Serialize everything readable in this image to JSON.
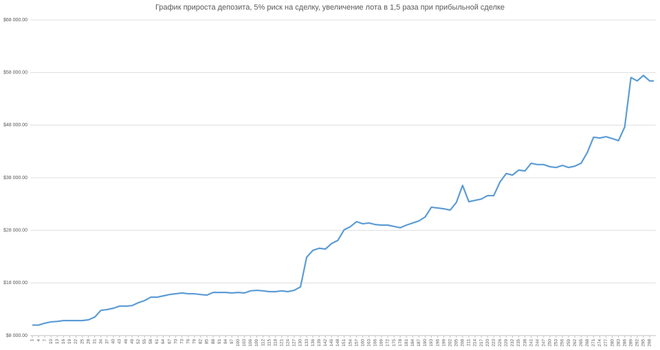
{
  "chart_data": {
    "type": "line",
    "title": "График прироста депозита, 5% риск на сделку, увеличение лота  в 1,5 раза при прибыльной сделке",
    "xlim": [
      1,
      300
    ],
    "xticks": [
      1,
      4,
      7,
      10,
      13,
      16,
      19,
      22,
      25,
      28,
      31,
      34,
      37,
      40,
      43,
      46,
      49,
      52,
      55,
      58,
      61,
      64,
      67,
      70,
      73,
      76,
      79,
      82,
      85,
      88,
      91,
      94,
      97,
      100,
      103,
      106,
      109,
      112,
      115,
      118,
      121,
      124,
      127,
      130,
      133,
      136,
      139,
      142,
      145,
      148,
      151,
      154,
      157,
      160,
      163,
      166,
      169,
      172,
      175,
      178,
      181,
      184,
      187,
      190,
      193,
      196,
      199,
      202,
      205,
      208,
      211,
      214,
      217,
      220,
      223,
      226,
      229,
      232,
      235,
      238,
      241,
      244,
      247,
      250,
      253,
      256,
      259,
      262,
      265,
      268,
      271,
      274,
      277,
      280,
      283,
      286,
      289,
      292,
      295,
      298
    ],
    "ylim": [
      8000,
      68000
    ],
    "yticks": [
      {
        "value": 8000,
        "label": "$8 000.00"
      },
      {
        "value": 18000,
        "label": "$18 000.00"
      },
      {
        "value": 28000,
        "label": "$28 000.00"
      },
      {
        "value": 38000,
        "label": "$38 000.00"
      },
      {
        "value": 48000,
        "label": "$48 000.00"
      },
      {
        "value": 58000,
        "label": "$58 000.00"
      },
      {
        "value": 68000,
        "label": "$68 000.00"
      }
    ],
    "grid": true,
    "x": [
      1,
      4,
      7,
      10,
      13,
      16,
      19,
      22,
      25,
      28,
      31,
      34,
      37,
      40,
      43,
      46,
      49,
      52,
      55,
      58,
      61,
      64,
      67,
      70,
      73,
      76,
      79,
      82,
      85,
      88,
      91,
      94,
      97,
      100,
      103,
      106,
      109,
      112,
      115,
      118,
      121,
      124,
      127,
      130,
      133,
      136,
      139,
      142,
      145,
      148,
      151,
      154,
      157,
      160,
      163,
      166,
      169,
      172,
      175,
      178,
      181,
      184,
      187,
      190,
      193,
      196,
      199,
      202,
      205,
      208,
      211,
      214,
      217,
      220,
      223,
      226,
      229,
      232,
      235,
      238,
      241,
      244,
      247,
      250,
      253,
      256,
      259,
      262,
      265,
      268,
      271,
      274,
      277,
      280,
      283,
      286,
      289,
      292,
      295,
      298,
      300
    ],
    "series": [
      {
        "color": "#5b9bd5",
        "values": [
          10000,
          10000,
          10350,
          10600,
          10700,
          10850,
          10850,
          10850,
          10850,
          11000,
          11500,
          12800,
          12950,
          13200,
          13600,
          13600,
          13700,
          14250,
          14650,
          15300,
          15300,
          15550,
          15800,
          15950,
          16100,
          15950,
          15950,
          15800,
          15700,
          16200,
          16200,
          16200,
          16100,
          16200,
          16100,
          16500,
          16600,
          16500,
          16350,
          16350,
          16500,
          16350,
          16600,
          17250,
          22900,
          24200,
          24600,
          24450,
          25500,
          26100,
          28100,
          28700,
          29650,
          29250,
          29400,
          29100,
          29000,
          29000,
          28750,
          28500,
          29000,
          29400,
          29800,
          30550,
          32400,
          32250,
          32100,
          31850,
          33300,
          36550,
          33450,
          33700,
          33950,
          34600,
          34600,
          37200,
          38800,
          38500,
          39450,
          39300,
          40750,
          40500,
          40500,
          40100,
          39950,
          40350,
          39950,
          40200,
          40750,
          42800,
          45700,
          45550,
          45800,
          45450,
          45050,
          47650,
          57050,
          56400,
          57450,
          56400,
          56400
        ]
      }
    ]
  }
}
